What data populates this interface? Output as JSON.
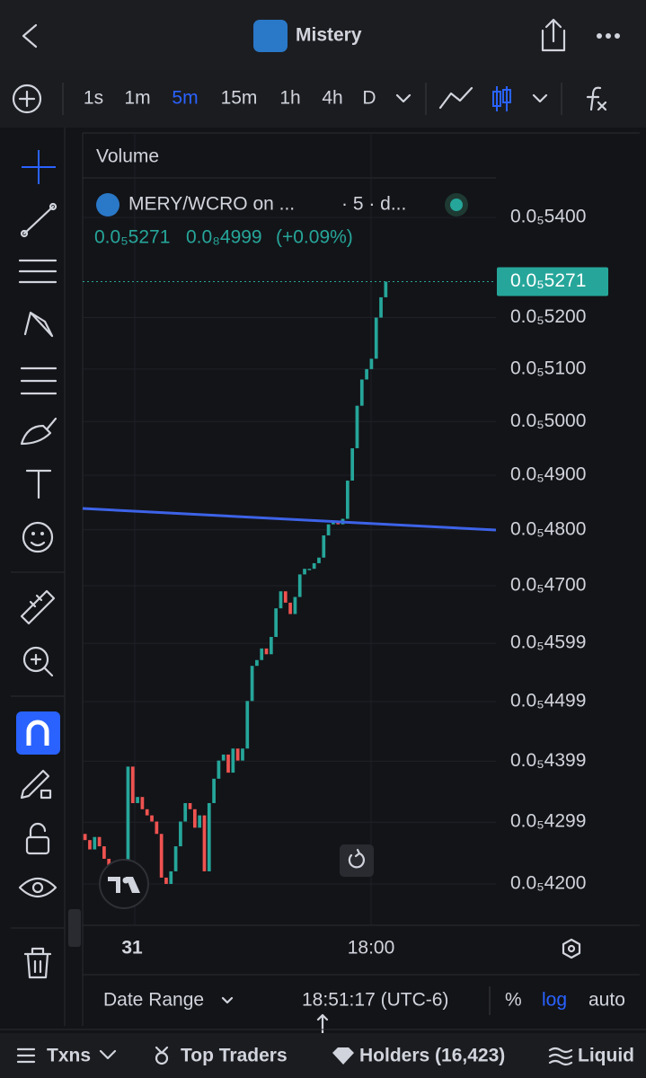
{
  "header": {
    "title": "Mistery"
  },
  "toolbar": {
    "intervals": [
      "1s",
      "1m",
      "5m",
      "15m",
      "1h",
      "4h",
      "D"
    ],
    "active_interval_index": 2,
    "active_color": "#2962ff"
  },
  "chart": {
    "volume_label": "Volume",
    "symbol": "MERY/WCRO on ...",
    "interval_info": "· 5 · d...",
    "stats": [
      "0.0₅5271",
      "0.0₈4999",
      "(+0.09%)"
    ],
    "log_scale": true,
    "ylim": [
      4.135e-06,
      5.575e-06
    ],
    "yticks": [
      {
        "value": 5.4e-06,
        "label": "0.0₅5400"
      },
      {
        "value": 5.2e-06,
        "label": "0.0₅5200"
      },
      {
        "value": 5.1e-06,
        "label": "0.0₅5100"
      },
      {
        "value": 5e-06,
        "label": "0.0₅5000"
      },
      {
        "value": 4.9e-06,
        "label": "0.0₅4900"
      },
      {
        "value": 4.8e-06,
        "label": "0.0₅4800"
      },
      {
        "value": 4.7e-06,
        "label": "0.0₅4700"
      },
      {
        "value": 4.599e-06,
        "label": "0.0₅4599"
      },
      {
        "value": 4.499e-06,
        "label": "0.0₅4499"
      },
      {
        "value": 4.399e-06,
        "label": "0.0₅4399"
      },
      {
        "value": 4.299e-06,
        "label": "0.0₅4299"
      },
      {
        "value": 4.2e-06,
        "label": "0.0₅4200"
      }
    ],
    "current_price": {
      "value": 5.271e-06,
      "label": "0.0₅5271"
    },
    "up_color": "#26a69a",
    "down_color": "#ef5350",
    "open": 4.28e-06,
    "closes": [
      4.27e-06,
      4.255e-06,
      4.275e-06,
      4.26e-06,
      4.24e-06,
      4.23e-06,
      4.225e-06,
      4.23e-06,
      4.22e-06,
      4.39e-06,
      4.33e-06,
      4.34e-06,
      4.32e-06,
      4.31e-06,
      4.3e-06,
      4.28e-06,
      4.21e-06,
      4.2e-06,
      4.22e-06,
      4.26e-06,
      4.3e-06,
      4.33e-06,
      4.32e-06,
      4.29e-06,
      4.31e-06,
      4.22e-06,
      4.33e-06,
      4.37e-06,
      4.4e-06,
      4.41e-06,
      4.38e-06,
      4.42e-06,
      4.4e-06,
      4.42e-06,
      4.5e-06,
      4.56e-06,
      4.57e-06,
      4.59e-06,
      4.58e-06,
      4.61e-06,
      4.66e-06,
      4.69e-06,
      4.67e-06,
      4.65e-06,
      4.68e-06,
      4.72e-06,
      4.73e-06,
      4.73e-06,
      4.74e-06,
      4.75e-06,
      4.79e-06,
      4.81e-06,
      4.815e-06,
      4.81e-06,
      4.82e-06,
      4.89e-06,
      4.95e-06,
      5.03e-06,
      5.08e-06,
      5.1e-06,
      5.12e-06,
      5.2e-06,
      5.24e-06,
      5.271e-06
    ],
    "time_labels": [
      "31",
      "18:00"
    ]
  },
  "footer": {
    "date_range": "Date Range",
    "clock": "18:51:17 (UTC-6)",
    "percent": "%",
    "log": "log",
    "auto": "auto"
  },
  "tabs": [
    "Txns",
    "Top Traders",
    "Holders (16,423)",
    "Liquid"
  ]
}
